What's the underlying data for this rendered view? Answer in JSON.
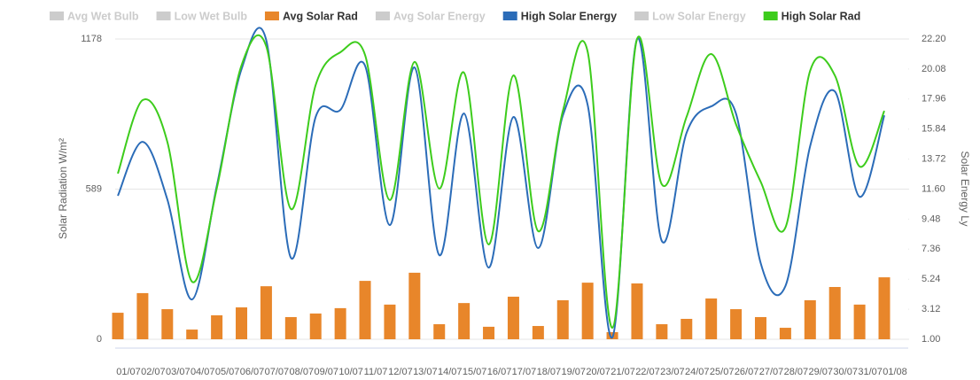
{
  "chart_data": {
    "type": "combo",
    "categories": [
      "01/07",
      "02/07",
      "03/07",
      "04/07",
      "05/07",
      "06/07",
      "07/07",
      "08/07",
      "09/07",
      "10/07",
      "11/07",
      "12/07",
      "13/07",
      "14/07",
      "15/07",
      "16/07",
      "17/07",
      "18/07",
      "19/07",
      "20/07",
      "21/07",
      "22/07",
      "23/07",
      "24/07",
      "25/07",
      "26/07",
      "27/07",
      "28/07",
      "29/07",
      "30/07",
      "31/07",
      "01/08"
    ],
    "ylabel": "Solar Radiation W/m²",
    "y2label": "Solar Energy Ly",
    "ylim": [
      0,
      1178
    ],
    "yticks": [
      0,
      589,
      1178
    ],
    "y2lim": [
      1,
      22.2
    ],
    "y2ticks": [
      {
        "value": 1,
        "label": "1.00"
      },
      {
        "value": 3.12,
        "label": "3.12"
      },
      {
        "value": 5.24,
        "label": "5.24"
      },
      {
        "value": 7.36,
        "label": "7.36"
      },
      {
        "value": 9.48,
        "label": "9.48"
      },
      {
        "value": 11.6,
        "label": "11.60"
      },
      {
        "value": 13.72,
        "label": "13.72"
      },
      {
        "value": 15.84,
        "label": "15.84"
      },
      {
        "value": 17.96,
        "label": "17.96"
      },
      {
        "value": 20.08,
        "label": "20.08"
      },
      {
        "value": 22.2,
        "label": "22.20"
      }
    ],
    "grid": true,
    "series": [
      {
        "name": "Avg Wet Bulb",
        "color": "#cccccc",
        "hidden": true
      },
      {
        "name": "Low Wet Bulb",
        "color": "#cccccc",
        "hidden": true
      },
      {
        "name": "Avg Solar Rad",
        "color": "#e8862a",
        "type": "bar",
        "axis": "y",
        "values": [
          104,
          181,
          118,
          38,
          94,
          125,
          208,
          87,
          101,
          122,
          229,
          136,
          261,
          59,
          142,
          49,
          167,
          52,
          153,
          222,
          28,
          219,
          59,
          80,
          160,
          118,
          87,
          45,
          153,
          205,
          136,
          243
        ]
      },
      {
        "name": "Avg Solar Energy",
        "color": "#cccccc",
        "hidden": true
      },
      {
        "name": "High Solar Energy",
        "color": "#2b6cb8",
        "type": "line",
        "axis": "y2",
        "values": [
          11.13,
          14.94,
          10.88,
          3.81,
          11.81,
          20.06,
          22.13,
          6.75,
          16.69,
          17.19,
          20.31,
          9.06,
          20.19,
          6.94,
          16.94,
          6.06,
          16.69,
          7.44,
          16.81,
          17.56,
          1.13,
          22.19,
          7.94,
          15.56,
          17.44,
          16.94,
          6.38,
          4.75,
          14.63,
          18.5,
          11.06,
          16.81
        ]
      },
      {
        "name": "Low Solar Energy",
        "color": "#cccccc",
        "hidden": true
      },
      {
        "name": "High Solar Rad",
        "color": "#3dcc1c",
        "type": "line",
        "axis": "y",
        "values": [
          650,
          938,
          775,
          226,
          591,
          1074,
          1150,
          511,
          997,
          1126,
          1115,
          546,
          1088,
          591,
          1046,
          372,
          1035,
          424,
          896,
          1129,
          45,
          1178,
          608,
          872,
          1119,
          844,
          618,
          438,
          1053,
          1035,
          678,
          896
        ]
      }
    ]
  }
}
